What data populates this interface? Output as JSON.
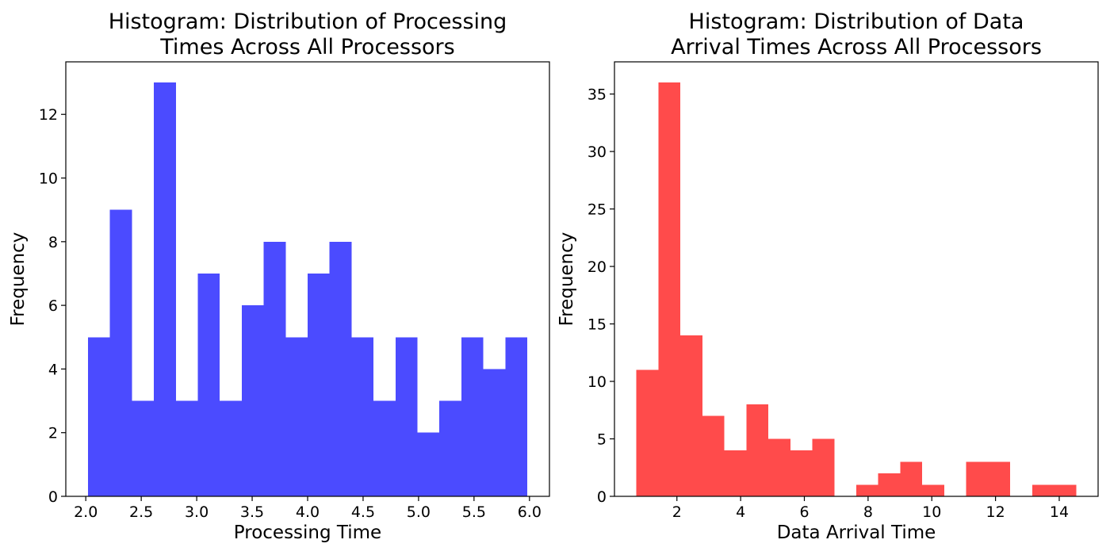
{
  "chart_data": [
    {
      "type": "bar",
      "title_lines": [
        "Histogram: Distribution of Processing",
        "Times Across All Processors"
      ],
      "xlabel": "Processing Time",
      "ylabel": "Frequency",
      "color": "#4b4bff",
      "bin_edges": [
        2.02,
        2.218,
        2.416,
        2.614,
        2.812,
        3.01,
        3.208,
        3.406,
        3.604,
        3.802,
        4.0,
        4.198,
        4.396,
        4.594,
        4.792,
        4.99,
        5.188,
        5.386,
        5.584,
        5.782,
        5.98
      ],
      "values": [
        5,
        9,
        3,
        13,
        3,
        7,
        3,
        6,
        8,
        5,
        7,
        8,
        5,
        3,
        5,
        2,
        3,
        5,
        4,
        5
      ],
      "xlim": [
        1.82,
        6.18
      ],
      "ylim": [
        0,
        13.65
      ],
      "xticks": [
        2.0,
        2.5,
        3.0,
        3.5,
        4.0,
        4.5,
        5.0,
        5.5,
        6.0
      ],
      "xtick_labels": [
        "2.0",
        "2.5",
        "3.0",
        "3.5",
        "4.0",
        "4.5",
        "5.0",
        "5.5",
        "6.0"
      ],
      "yticks": [
        0,
        2,
        4,
        6,
        8,
        10,
        12
      ],
      "ytick_labels": [
        "0",
        "2",
        "4",
        "6",
        "8",
        "10",
        "12"
      ],
      "grid": false
    },
    {
      "type": "bar",
      "title_lines": [
        "Histogram: Distribution of Data",
        "Arrival Times Across All Processors"
      ],
      "xlabel": "Data Arrival Time",
      "ylabel": "Frequency",
      "color": "#ff4b4b",
      "bin_edges": [
        0.73,
        1.42,
        2.11,
        2.8,
        3.49,
        4.18,
        4.87,
        5.56,
        6.25,
        6.94,
        7.63,
        8.32,
        9.01,
        9.7,
        10.39,
        11.08,
        11.77,
        12.46,
        13.15,
        13.84,
        14.53
      ],
      "values": [
        11,
        36,
        14,
        7,
        4,
        8,
        5,
        4,
        5,
        0,
        1,
        2,
        3,
        1,
        0,
        3,
        3,
        0,
        1,
        1
      ],
      "xlim": [
        0.04,
        15.22
      ],
      "ylim": [
        0,
        37.8
      ],
      "xticks": [
        2,
        4,
        6,
        8,
        10,
        12,
        14
      ],
      "xtick_labels": [
        "2",
        "4",
        "6",
        "8",
        "10",
        "12",
        "14"
      ],
      "yticks": [
        0,
        5,
        10,
        15,
        20,
        25,
        30,
        35
      ],
      "ytick_labels": [
        "0",
        "5",
        "10",
        "15",
        "20",
        "25",
        "30",
        "35"
      ],
      "grid": false
    }
  ]
}
